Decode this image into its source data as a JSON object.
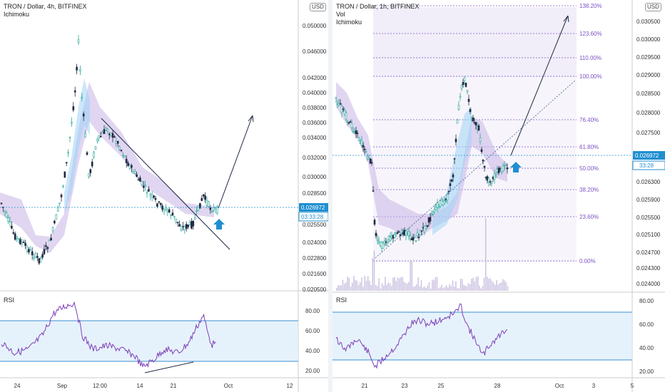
{
  "left_chart": {
    "title": "TRON / Dollar, 4h, BITFINEX",
    "indicator": "Ichimoku",
    "currency_badge": "USD",
    "price_ticks": [
      "0.050000",
      "0.046000",
      "0.042000",
      "0.040000",
      "0.038000",
      "0.036000",
      "0.034000",
      "0.032000",
      "0.030000",
      "0.028500",
      "0.025500",
      "0.024000",
      "0.022800",
      "0.021600",
      "0.020500"
    ],
    "price_tag": "0.026972",
    "countdown_tag": "03:33:28",
    "time_ticks": [
      "24",
      "Sep",
      "12:00",
      "14",
      "21",
      "Oct",
      "12"
    ],
    "rsi_label": "RSI",
    "rsi_ticks": [
      "80.00",
      "60.00",
      "40.00",
      "20.00"
    ],
    "accent_color": "#1f8fd1",
    "cloud_color": "#b39ddb",
    "rsi_line_color": "#7e3fb8"
  },
  "right_chart": {
    "title": "TRON / Dollar, 1h, BITFINEX",
    "indicators": [
      "Vol",
      "Ichimoku"
    ],
    "currency_badge": "USD",
    "price_ticks": [
      "0.030500",
      "0.030000",
      "0.029500",
      "0.029000",
      "0.028500",
      "0.028000",
      "0.027500",
      "0.026300",
      "0.025900",
      "0.025500",
      "0.025100",
      "0.024700",
      "0.024300",
      "0.024000"
    ],
    "price_tag": "0.026972",
    "countdown_tag": "33:28",
    "fib_levels": [
      "138.20%",
      "123.60%",
      "110.00%",
      "100.00%",
      "76.40%",
      "61.80%",
      "50.00%",
      "38.20%",
      "23.60%",
      "0.00%"
    ],
    "time_ticks": [
      "21",
      "23",
      "25",
      "28",
      "Oct",
      "3",
      "5"
    ],
    "rsi_label": "RSI",
    "rsi_ticks": [
      "80.00",
      "60.00",
      "40.00",
      "20.00"
    ],
    "fib_color": "#7b52c4"
  }
}
